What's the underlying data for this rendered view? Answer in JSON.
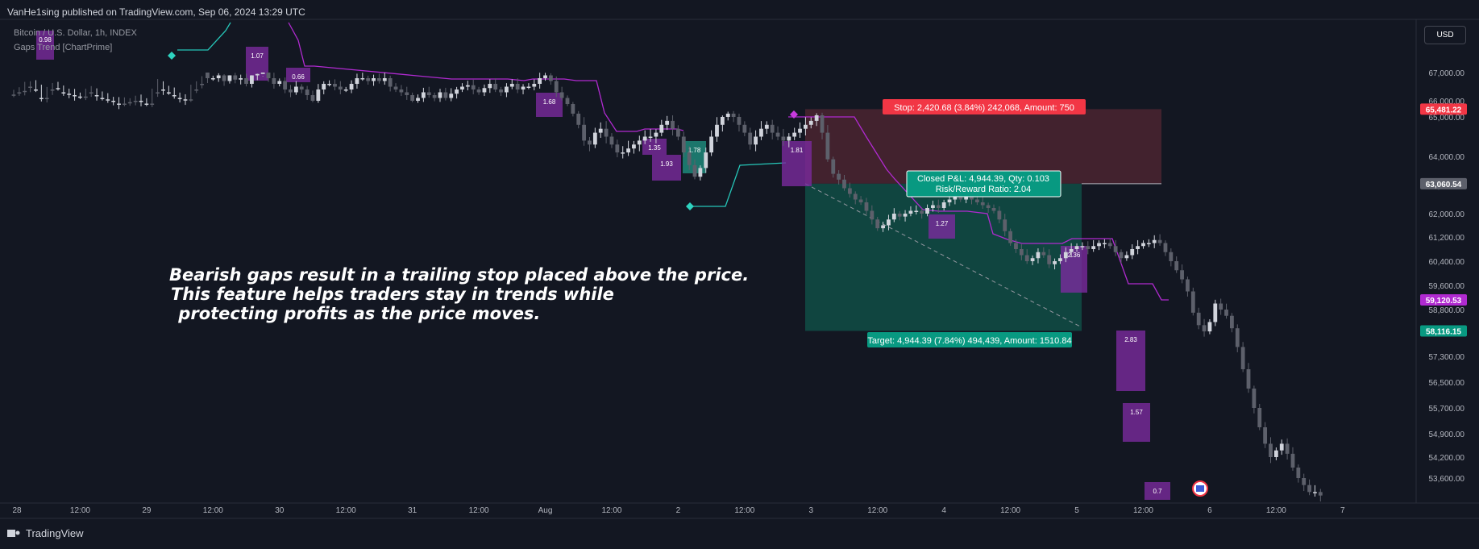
{
  "header": {
    "publisher": "VanHe1sing published on TradingView.com, Sep 06, 2024 13:29 UTC"
  },
  "legend": {
    "symbol": "Bitcoin / U.S. Dollar, 1h, INDEX",
    "indicator": "Gaps Trend [ChartPrime]"
  },
  "currency_button": "USD",
  "brand": {
    "name": "TradingView"
  },
  "annotation": {
    "lines": [
      "Bearish gaps result in a trailing stop placed above the price.",
      "This feature helps traders stay in trends while",
      " protecting profits as the price moves."
    ]
  },
  "position": {
    "stop_label": "Stop: 2,420.68 (3.84%) 242,068, Amount: 750",
    "pnl_label": "Closed P&L: 4,944.39, Qty: 0.103",
    "rr_label": "Risk/Reward Ratio: 2.04",
    "target_label": "Target: 4,944.39 (7.84%) 494,439, Amount: 1510.84"
  },
  "colors": {
    "background": "#131722",
    "up_candle": "#d1d4dc",
    "down_candle": "#5d606b",
    "gap_box": "#7b2b9e",
    "bull_gap_box": "#1f8f7f",
    "trail_bear": "#b02ad0",
    "trail_bull": "#26c6b8",
    "stop_zone": "#4b2430",
    "target_zone": "#114a44",
    "stop_badge": "#f23645",
    "target_badge": "#089981"
  },
  "chart_data": {
    "type": "candlestick",
    "title": "Bitcoin / U.S. Dollar, 1h, INDEX",
    "ylim": [
      53000,
      68200
    ],
    "y_ticks": [
      67000,
      66000,
      65000,
      64000,
      63000,
      62000,
      61200,
      60400,
      59600,
      58800,
      57300,
      56500,
      55700,
      54900,
      54200,
      53600
    ],
    "y_tick_labels": [
      "67,000.00",
      "66,000.00",
      "65,000.00",
      "64,000.00",
      "63,000.00",
      "62,000.00",
      "61,200.00",
      "60,400.00",
      "59,600.00",
      "58,800.00",
      "57,300.00",
      "56,500.00",
      "55,700.00",
      "54,900.00",
      "54,200.00",
      "53,600.00"
    ],
    "x_ticks": [
      "28",
      "12:00",
      "29",
      "12:00",
      "30",
      "12:00",
      "31",
      "12:00",
      "Aug",
      "12:00",
      "2",
      "12:00",
      "3",
      "12:00",
      "4",
      "12:00",
      "5",
      "12:00",
      "6",
      "12:00",
      "7"
    ],
    "x_tick_index": [
      0,
      12,
      24,
      36,
      48,
      60,
      72,
      84,
      96,
      108,
      120,
      132,
      144,
      156,
      168,
      180,
      192,
      204,
      216,
      228,
      240
    ],
    "closes": [
      67700,
      67650,
      67500,
      67400,
      67600,
      67900,
      67600,
      67500,
      67550,
      67700,
      67750,
      67800,
      67850,
      67700,
      67650,
      67800,
      67900,
      67950,
      68000,
      68100,
      68050,
      68000,
      67950,
      68000,
      68100,
      67700,
      67400,
      67600,
      67700,
      67800,
      67900,
      67950,
      67600,
      67400,
      67000,
      66800,
      66800,
      66900,
      66700,
      66900,
      66750,
      66800,
      66600,
      66900,
      66950,
      67000,
      66800,
      66600,
      66700,
      66400,
      66300,
      66500,
      66400,
      66200,
      66000,
      66400,
      66600,
      66600,
      66500,
      66400,
      66400,
      66600,
      66800,
      66800,
      66700,
      66800,
      66700,
      66800,
      66500,
      66400,
      66300,
      66200,
      66000,
      66100,
      66300,
      66200,
      66100,
      66300,
      66100,
      66250,
      66400,
      66500,
      66550,
      66400,
      66300,
      66450,
      66600,
      66400,
      66300,
      66500,
      66600,
      66400,
      66500,
      66500,
      66600,
      66800,
      66900,
      66700,
      66300,
      66100,
      65800,
      65200,
      64800,
      64400,
      64300,
      64600,
      64700,
      64500,
      64300,
      64100,
      64100,
      64200,
      64300,
      64400,
      64500,
      64500,
      64600,
      64800,
      64900,
      64700,
      64500,
      64100,
      63700,
      63300,
      63600,
      64100,
      64500,
      64800,
      65000,
      65200,
      65000,
      64800,
      64600,
      64300,
      64500,
      64700,
      64800,
      64600,
      64500,
      64400,
      64500,
      64600,
      64700,
      64800,
      64900,
      65100,
      64600,
      63900,
      63400,
      63200,
      62900,
      62700,
      62500,
      62400,
      62100,
      61800,
      61500,
      61600,
      61800,
      62000,
      61900,
      62000,
      62100,
      62100,
      62000,
      62200,
      62300,
      62200,
      62400,
      62500,
      62600,
      62500,
      62600,
      62500,
      62400,
      62300,
      62200,
      62100,
      61800,
      61400,
      61000,
      60800,
      60600,
      60400,
      60500,
      60700,
      60600,
      60300,
      60400,
      60500,
      60700,
      60800,
      60900,
      60900,
      60800,
      60900,
      61000,
      61000,
      60900,
      60700,
      60500,
      60600,
      60800,
      60900,
      61000,
      61000,
      61100,
      61000,
      60700,
      60400,
      60100,
      59800,
      59400,
      58700,
      58300,
      58100,
      58400,
      59000,
      58800,
      58600,
      58200,
      57600,
      56900,
      56300,
      55700,
      55100,
      54600,
      54200,
      54400,
      54600,
      54300,
      53900,
      53600,
      53400,
      53200,
      53200,
      53100
    ],
    "markers": [
      {
        "label": "0.98"
      },
      {
        "label": "1.07"
      },
      {
        "label": "0.66"
      },
      {
        "label": "1.68"
      },
      {
        "label": "1.35"
      },
      {
        "label": "1.93"
      },
      {
        "label": "1.78"
      },
      {
        "label": "1.81"
      },
      {
        "label": "1.27"
      },
      {
        "label": "2.36"
      },
      {
        "label": "2.83"
      },
      {
        "label": "1.57"
      },
      {
        "label": "0.7"
      }
    ],
    "price_badges": [
      {
        "value": 65481.22,
        "label": "65,481.22"
      },
      {
        "value": 63060.54,
        "label": "63,060.54"
      },
      {
        "value": 59120.53,
        "label": "59,120.53"
      },
      {
        "value": 58116.15,
        "label": "58,116.15"
      }
    ],
    "position": {
      "entry": 63060.54,
      "stop": 65481.22,
      "target": 58116.15
    }
  }
}
